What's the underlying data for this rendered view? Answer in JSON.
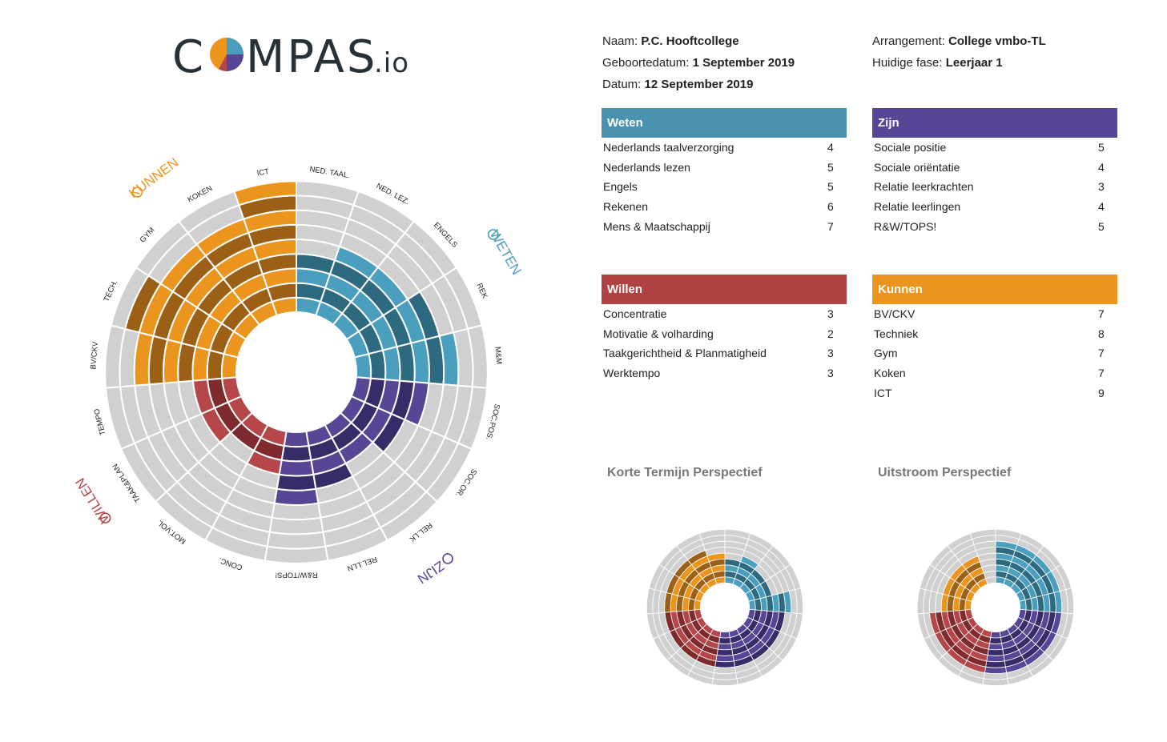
{
  "header": {
    "logo_text_left": "C",
    "logo_text_right": "MPAS",
    "logo_suffix": ".io"
  },
  "info": {
    "naam_label": "Naam:",
    "naam_value": "P.C. Hooftcollege",
    "geboortedatum_label": "Geboortedatum:",
    "geboortedatum_value": "1 September 2019",
    "datum_label": "Datum:",
    "datum_value": "12 September 2019",
    "arrangement_label": "Arrangement:",
    "arrangement_value": "College vmbo-TL",
    "fase_label": "Huidige fase:",
    "fase_value": "Leerjaar 1"
  },
  "panels": {
    "weten": {
      "title": "Weten",
      "color": "#4a93b0",
      "rows": [
        {
          "label": "Nederlands taalverzorging",
          "value": "4"
        },
        {
          "label": "Nederlands lezen",
          "value": "5"
        },
        {
          "label": "Engels",
          "value": "5"
        },
        {
          "label": "Rekenen",
          "value": "6"
        },
        {
          "label": "Mens & Maatschappij",
          "value": "7"
        }
      ]
    },
    "zijn": {
      "title": "Zijn",
      "color": "#574596",
      "rows": [
        {
          "label": "Sociale positie",
          "value": "5"
        },
        {
          "label": "Sociale oriëntatie",
          "value": "4"
        },
        {
          "label": "Relatie leerkrachten",
          "value": "3"
        },
        {
          "label": "Relatie leerlingen",
          "value": "4"
        },
        {
          "label": "R&W/TOPS!",
          "value": "5"
        }
      ]
    },
    "willen": {
      "title": "Willen",
      "color": "#b04244",
      "rows": [
        {
          "label": "Concentratie",
          "value": "3"
        },
        {
          "label": "Motivatie & volharding",
          "value": "2"
        },
        {
          "label": "Taakgerichtheid & Planmatigheid",
          "value": "3"
        },
        {
          "label": "Werktempo",
          "value": "3"
        }
      ]
    },
    "kunnen": {
      "title": "Kunnen",
      "color": "#eb951e",
      "rows": [
        {
          "label": "BV/CKV",
          "value": "7"
        },
        {
          "label": "Techniek",
          "value": "8"
        },
        {
          "label": "Gym",
          "value": "7"
        },
        {
          "label": "Koken",
          "value": "7"
        },
        {
          "label": "ICT",
          "value": "9"
        }
      ]
    }
  },
  "mini_titles": {
    "short": "Korte Termijn Perspectief",
    "out": "Uitstroom Perspectief"
  },
  "chart_data": [
    {
      "type": "polar-bar",
      "rings_max": 9,
      "categories": [
        "NED. TAAL.",
        "NED. LEZ.",
        "ENGELS",
        "REK",
        "M&M",
        "SOC.POS.",
        "SOC.OR.",
        "REL.LK",
        "REL.LLN",
        "R&W/TOPS!",
        "CONC.",
        "MOT.VOL",
        "TAAK&PLAN",
        "TEMPO",
        "BV/CKV",
        "TECH.",
        "GYM",
        "KOKEN",
        "ICT"
      ],
      "values": [
        4,
        5,
        5,
        6,
        7,
        5,
        4,
        3,
        4,
        5,
        3,
        2,
        3,
        3,
        7,
        8,
        7,
        7,
        9
      ],
      "groups": [
        {
          "name": "WETEN",
          "start": 0,
          "end": 4,
          "color_light": "#4a9ebe",
          "color_dark": "#2d6a80"
        },
        {
          "name": "ZIJN",
          "start": 5,
          "end": 9,
          "color_light": "#574596",
          "color_dark": "#382c68"
        },
        {
          "name": "WILLEN",
          "start": 10,
          "end": 13,
          "color_light": "#b5474a",
          "color_dark": "#7f2a2c"
        },
        {
          "name": "KUNNEN",
          "start": 14,
          "end": 18,
          "color_light": "#eb951e",
          "color_dark": "#9c5f16"
        }
      ],
      "group_labels": [
        {
          "text": "WETEN",
          "color": "#4a9ebe",
          "icon": "pencil-icon"
        },
        {
          "text": "ZIJN",
          "color": "#574596",
          "icon": "chat-icon"
        },
        {
          "text": "WILLEN",
          "color": "#b5474a",
          "icon": "eye-icon"
        },
        {
          "text": "KUNNEN",
          "color": "#eb951e",
          "icon": "hand-icon"
        }
      ]
    },
    {
      "type": "polar-bar",
      "title": "Korte Termijn Perspectief",
      "rings_max": 9,
      "values": [
        4,
        5,
        4,
        4,
        7,
        6,
        6,
        6,
        6,
        6,
        6,
        6,
        6,
        6,
        6,
        6,
        6,
        6,
        5
      ]
    },
    {
      "type": "polar-bar",
      "title": "Uitstroom Perspectief",
      "rings_max": 9,
      "values": [
        7,
        7,
        7,
        7,
        7,
        7,
        7,
        7,
        7,
        7,
        7,
        7,
        7,
        7,
        5,
        5,
        5,
        5,
        0
      ]
    }
  ]
}
